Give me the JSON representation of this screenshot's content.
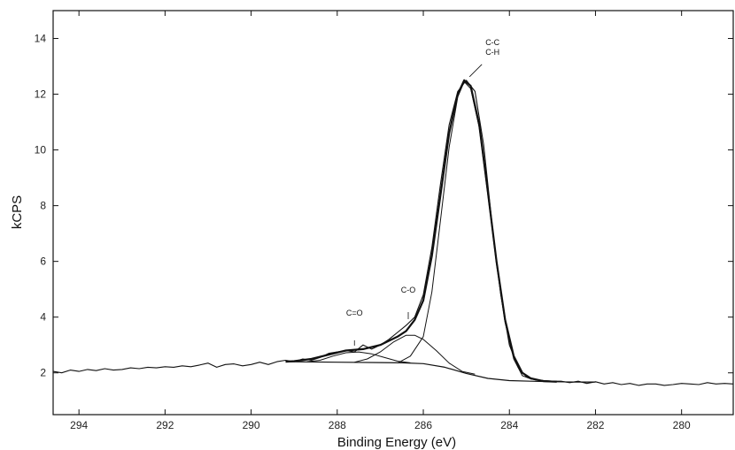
{
  "chart_data": {
    "type": "line",
    "title": "",
    "xlabel": "Binding Energy (eV)",
    "ylabel": "kCPS",
    "xlim": [
      294.6,
      278.8
    ],
    "ylim": [
      0.5,
      15.0
    ],
    "x_reversed": true,
    "grid": false,
    "legend": "none",
    "x_ticks": [
      294,
      292,
      290,
      288,
      286,
      284,
      282,
      280
    ],
    "y_ticks": [
      2,
      4,
      6,
      8,
      10,
      12,
      14
    ],
    "series": [
      {
        "style": "raw-spectrum",
        "x": [
          294.6,
          294.4,
          294.2,
          294.0,
          293.8,
          293.6,
          293.4,
          293.2,
          293.0,
          292.8,
          292.6,
          292.4,
          292.2,
          292.0,
          291.8,
          291.6,
          291.4,
          291.2,
          291.0,
          290.8,
          290.6,
          290.4,
          290.2,
          290.0,
          289.8,
          289.6,
          289.4,
          289.2,
          289.0,
          288.8,
          288.6,
          288.4,
          288.2,
          288.0,
          287.8,
          287.6,
          287.4,
          287.2,
          287.0,
          286.8,
          286.6,
          286.4,
          286.2,
          286.0,
          285.8,
          285.6,
          285.4,
          285.2,
          285.0,
          284.8,
          284.6,
          284.4,
          284.2,
          284.0,
          283.8,
          283.6,
          283.4,
          283.2,
          283.0,
          282.8,
          282.6,
          282.4,
          282.2,
          282.0,
          281.8,
          281.6,
          281.4,
          281.2,
          281.0,
          280.8,
          280.6,
          280.4,
          280.2,
          280.0,
          279.8,
          279.6,
          279.4,
          279.2,
          279.0,
          278.8
        ],
        "values": [
          2.05,
          2.0,
          2.1,
          2.05,
          2.12,
          2.08,
          2.15,
          2.1,
          2.12,
          2.18,
          2.15,
          2.2,
          2.18,
          2.22,
          2.2,
          2.25,
          2.22,
          2.28,
          2.35,
          2.2,
          2.3,
          2.32,
          2.25,
          2.3,
          2.38,
          2.3,
          2.4,
          2.45,
          2.4,
          2.5,
          2.45,
          2.55,
          2.7,
          2.75,
          2.8,
          2.75,
          3.0,
          2.85,
          3.0,
          3.2,
          3.45,
          3.7,
          4.0,
          4.8,
          6.5,
          8.8,
          10.9,
          12.1,
          12.5,
          12.1,
          10.2,
          7.3,
          4.8,
          3.0,
          2.2,
          1.85,
          1.75,
          1.72,
          1.7,
          1.7,
          1.65,
          1.7,
          1.62,
          1.68,
          1.6,
          1.65,
          1.58,
          1.62,
          1.55,
          1.6,
          1.6,
          1.55,
          1.58,
          1.62,
          1.6,
          1.58,
          1.65,
          1.6,
          1.62,
          1.6
        ]
      },
      {
        "style": "envelope",
        "x": [
          289.2,
          289.0,
          288.6,
          288.2,
          287.8,
          287.4,
          287.0,
          286.6,
          286.4,
          286.2,
          286.0,
          285.8,
          285.6,
          285.4,
          285.2,
          285.05,
          284.9,
          284.7,
          284.5,
          284.3,
          284.1,
          283.9,
          283.7,
          283.5,
          283.2,
          282.9
        ],
        "values": [
          2.4,
          2.42,
          2.5,
          2.65,
          2.8,
          2.85,
          3.0,
          3.3,
          3.5,
          3.9,
          4.6,
          6.2,
          8.4,
          10.6,
          12.0,
          12.5,
          12.3,
          10.9,
          8.5,
          6.0,
          3.9,
          2.6,
          2.0,
          1.8,
          1.7,
          1.68
        ]
      },
      {
        "style": "component",
        "label": "C-C C-H",
        "x": [
          286.6,
          286.3,
          286.0,
          285.8,
          285.6,
          285.4,
          285.2,
          285.05,
          284.9,
          284.7,
          284.5,
          284.3,
          284.1,
          283.9,
          283.7,
          283.5,
          283.2,
          282.9
        ],
        "values": [
          2.35,
          2.6,
          3.3,
          4.9,
          7.5,
          10.1,
          11.9,
          12.45,
          12.2,
          10.8,
          8.4,
          5.9,
          3.8,
          2.5,
          1.9,
          1.78,
          1.72,
          1.7
        ]
      },
      {
        "style": "component",
        "label": "C-O",
        "x": [
          287.6,
          287.3,
          287.0,
          286.7,
          286.4,
          286.2,
          286.0,
          285.7,
          285.4,
          285.1,
          284.8
        ],
        "values": [
          2.38,
          2.5,
          2.75,
          3.1,
          3.35,
          3.35,
          3.2,
          2.8,
          2.35,
          2.05,
          1.95
        ]
      },
      {
        "style": "component",
        "label": "C=O",
        "x": [
          288.7,
          288.4,
          288.1,
          287.8,
          287.5,
          287.2,
          286.9,
          286.6,
          286.3
        ],
        "values": [
          2.4,
          2.45,
          2.6,
          2.72,
          2.75,
          2.68,
          2.55,
          2.42,
          2.36
        ]
      },
      {
        "style": "background",
        "x": [
          289.2,
          288.0,
          287.0,
          286.5,
          286.0,
          285.5,
          285.0,
          284.5,
          284.0,
          283.5,
          283.0,
          282.5,
          282.0
        ],
        "values": [
          2.4,
          2.38,
          2.37,
          2.36,
          2.33,
          2.2,
          1.98,
          1.8,
          1.72,
          1.7,
          1.68,
          1.67,
          1.67
        ]
      }
    ],
    "annotations": [
      {
        "lines": [
          "C-C",
          "C-H"
        ],
        "x": 285.05,
        "y": 12.5
      },
      {
        "lines": [
          "C-O"
        ],
        "x": 286.35,
        "y": 3.8
      },
      {
        "lines": [
          "C=O"
        ],
        "x": 287.6,
        "y": 2.85
      }
    ]
  }
}
